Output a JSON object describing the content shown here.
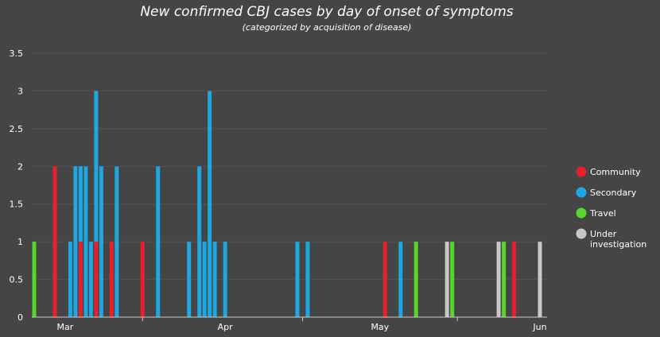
{
  "chart_data": {
    "type": "bar",
    "title": "New confirmed CBJ cases by day of onset of symptoms",
    "subtitle": "(categorized by acquisition of disease)",
    "xlabel": "",
    "ylabel": "",
    "ylim": [
      0,
      3.5
    ],
    "yticks": [
      "0",
      "0.5",
      "1",
      "1.5",
      "2",
      "2.5",
      "3",
      "3.5"
    ],
    "x_axis": {
      "start": "2020-02-24",
      "end": "2020-06-01",
      "labels": [
        {
          "date": "2020-03-01",
          "text": "Mar"
        },
        {
          "date": "2020-04-01",
          "text": "Apr"
        },
        {
          "date": "2020-05-01",
          "text": "May"
        },
        {
          "date": "2020-06-01",
          "text": "Jun"
        }
      ],
      "minor_ticks": [
        "2020-03-16",
        "2020-04-16",
        "2020-05-16"
      ]
    },
    "grid": true,
    "legend_position": "right",
    "colors": {
      "background": "#454545",
      "grid": "#555555",
      "axis": "#cccccc"
    },
    "series": [
      {
        "name": "Community",
        "color": "#e8202a",
        "points": [
          {
            "date": "2020-02-28",
            "value": 2
          },
          {
            "date": "2020-03-04",
            "value": 1
          },
          {
            "date": "2020-03-07",
            "value": 1
          },
          {
            "date": "2020-03-10",
            "value": 1
          },
          {
            "date": "2020-03-16",
            "value": 1
          },
          {
            "date": "2020-05-02",
            "value": 1
          },
          {
            "date": "2020-05-27",
            "value": 1
          }
        ]
      },
      {
        "name": "Secondary",
        "color": "#1ea7e1",
        "points": [
          {
            "date": "2020-03-02",
            "value": 1
          },
          {
            "date": "2020-03-03",
            "value": 2
          },
          {
            "date": "2020-03-04",
            "value": 1
          },
          {
            "date": "2020-03-05",
            "value": 2
          },
          {
            "date": "2020-03-06",
            "value": 1
          },
          {
            "date": "2020-03-07",
            "value": 2
          },
          {
            "date": "2020-03-08",
            "value": 2
          },
          {
            "date": "2020-03-11",
            "value": 2
          },
          {
            "date": "2020-03-19",
            "value": 2
          },
          {
            "date": "2020-03-25",
            "value": 1
          },
          {
            "date": "2020-03-27",
            "value": 2
          },
          {
            "date": "2020-03-28",
            "value": 1
          },
          {
            "date": "2020-03-29",
            "value": 3
          },
          {
            "date": "2020-03-30",
            "value": 1
          },
          {
            "date": "2020-04-01",
            "value": 1
          },
          {
            "date": "2020-04-15",
            "value": 1
          },
          {
            "date": "2020-04-17",
            "value": 1
          },
          {
            "date": "2020-05-05",
            "value": 1
          }
        ]
      },
      {
        "name": "Travel",
        "color": "#58d62c",
        "points": [
          {
            "date": "2020-02-24",
            "value": 1
          },
          {
            "date": "2020-05-08",
            "value": 1
          },
          {
            "date": "2020-05-15",
            "value": 1
          },
          {
            "date": "2020-05-25",
            "value": 1
          }
        ]
      },
      {
        "name": "Under investigation",
        "legend_lines": [
          "Under",
          "investigation"
        ],
        "color": "#c8c8c8",
        "points": [
          {
            "date": "2020-05-14",
            "value": 1
          },
          {
            "date": "2020-05-24",
            "value": 1
          },
          {
            "date": "2020-06-01",
            "value": 1
          }
        ]
      }
    ]
  }
}
